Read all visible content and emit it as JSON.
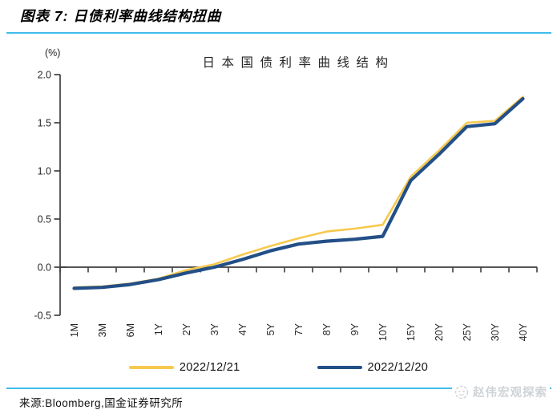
{
  "header": {
    "title": "图表 7: 日债利率曲线结构扭曲"
  },
  "chart": {
    "unit_label": "(%)",
    "title": "日本国债利率曲线结构"
  },
  "chart_data": {
    "type": "line",
    "title": "日本国债利率曲线结构",
    "unit": "(%)",
    "categories": [
      "1M",
      "3M",
      "6M",
      "1Y",
      "2Y",
      "3Y",
      "4Y",
      "5Y",
      "7Y",
      "8Y",
      "9Y",
      "10Y",
      "15Y",
      "20Y",
      "25Y",
      "30Y",
      "40Y"
    ],
    "series": [
      {
        "name": "2022/12/21",
        "color": "#F6C94E",
        "stroke_width": 2.6,
        "values": [
          -0.21,
          -0.2,
          -0.17,
          -0.12,
          -0.03,
          0.03,
          0.13,
          0.22,
          0.3,
          0.37,
          0.4,
          0.44,
          0.94,
          1.21,
          1.5,
          1.52,
          1.77
        ]
      },
      {
        "name": "2022/12/20",
        "color": "#234F87",
        "stroke_width": 4.2,
        "values": [
          -0.22,
          -0.21,
          -0.18,
          -0.13,
          -0.06,
          0.0,
          0.08,
          0.17,
          0.24,
          0.27,
          0.29,
          0.32,
          0.9,
          1.17,
          1.46,
          1.49,
          1.75
        ]
      }
    ],
    "ylim": [
      -0.5,
      2.0
    ],
    "yticks": [
      {
        "label": "2.0",
        "value": 2.0
      },
      {
        "label": "1.5",
        "value": 1.5
      },
      {
        "label": "1.0",
        "value": 1.0
      },
      {
        "label": "0.5",
        "value": 0.5
      },
      {
        "label": "0.0",
        "value": 0.0
      },
      {
        "label": "-0.5",
        "value": -0.5
      }
    ],
    "grid": false,
    "legend_position": "bottom",
    "x_label_rotation": -90
  },
  "footer": {
    "source": "来源:Bloomberg,国金证券研究所",
    "watermark": "赵伟宏观探索"
  },
  "colors": {
    "accent_rule": "#41BCEB",
    "axis": "#3f3f3f",
    "tick_text": "#262626"
  }
}
